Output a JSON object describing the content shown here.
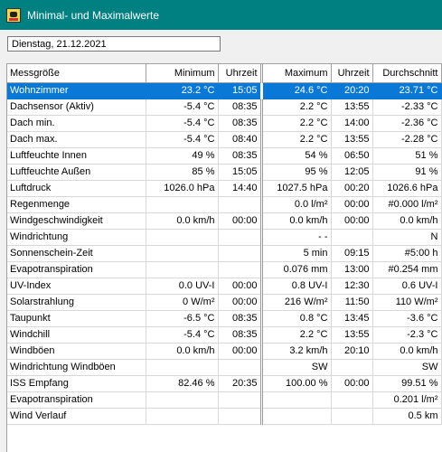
{
  "window": {
    "title": "Minimal- und Maximalwerte",
    "icon": "weather-app-icon"
  },
  "date_field": {
    "value": "Dienstag, 21.12.2021"
  },
  "table": {
    "headers": [
      "Messgröße",
      "Minimum",
      "Uhrzeit",
      "Maximum",
      "Uhrzeit",
      "Durchschnitt"
    ],
    "rows": [
      [
        "Wohnzimmer",
        "23.2 °C",
        "15:05",
        "24.6 °C",
        "20:20",
        "23.71 °C"
      ],
      [
        "Dachsensor (Aktiv)",
        "-5.4 °C",
        "08:35",
        "2.2 °C",
        "13:55",
        "-2.33 °C"
      ],
      [
        "Dach min.",
        "-5.4 °C",
        "08:35",
        "2.2 °C",
        "14:00",
        "-2.36 °C"
      ],
      [
        "Dach max.",
        "-5.4 °C",
        "08:40",
        "2.2 °C",
        "13:55",
        "-2.28 °C"
      ],
      [
        "Luftfeuchte Innen",
        "49 %",
        "08:35",
        "54 %",
        "06:50",
        "51 %"
      ],
      [
        "Luftfeuchte Außen",
        "85 %",
        "15:05",
        "95 %",
        "12:05",
        "91 %"
      ],
      [
        "Luftdruck",
        "1026.0 hPa",
        "14:40",
        "1027.5 hPa",
        "00:20",
        "1026.6 hPa"
      ],
      [
        "Regenmenge",
        "",
        "",
        "0.0 l/m²",
        "00:00",
        "#0.000 l/m²"
      ],
      [
        "Windgeschwindigkeit",
        "0.0 km/h",
        "00:00",
        "0.0 km/h",
        "00:00",
        "0.0 km/h"
      ],
      [
        "Windrichtung",
        "",
        "",
        "- -",
        "",
        "N"
      ],
      [
        "Sonnenschein-Zeit",
        "",
        "",
        "5 min",
        "09:15",
        "#5:00 h"
      ],
      [
        "Evapotranspiration",
        "",
        "",
        "0.076 mm",
        "13:00",
        "#0.254 mm"
      ],
      [
        "UV-Index",
        "0.0 UV-I",
        "00:00",
        "0.8 UV-I",
        "12:30",
        "0.6 UV-I"
      ],
      [
        "Solarstrahlung",
        "0 W/m²",
        "00:00",
        "216 W/m²",
        "11:50",
        "110 W/m²"
      ],
      [
        "Taupunkt",
        "-6.5 °C",
        "08:35",
        "0.8 °C",
        "13:45",
        "-3.6 °C"
      ],
      [
        "Windchill",
        "-5.4 °C",
        "08:35",
        "2.2 °C",
        "13:55",
        "-2.3 °C"
      ],
      [
        "Windböen",
        "0.0 km/h",
        "00:00",
        "3.2 km/h",
        "20:10",
        "0.0 km/h"
      ],
      [
        "Windrichtung Windböen",
        "",
        "",
        "SW",
        "",
        "SW"
      ],
      [
        "ISS Empfang",
        "82.46 %",
        "20:35",
        "100.00 %",
        "00:00",
        "99.51 %"
      ],
      [
        "Evapotranspiration",
        "",
        "",
        "",
        "",
        "0.201 l/m²"
      ],
      [
        "Wind Verlauf",
        "",
        "",
        "",
        "",
        "0.5 km"
      ]
    ],
    "selected_row": 0,
    "colors": {
      "selection": "#0a78d7",
      "titlebar": "#008080"
    }
  }
}
